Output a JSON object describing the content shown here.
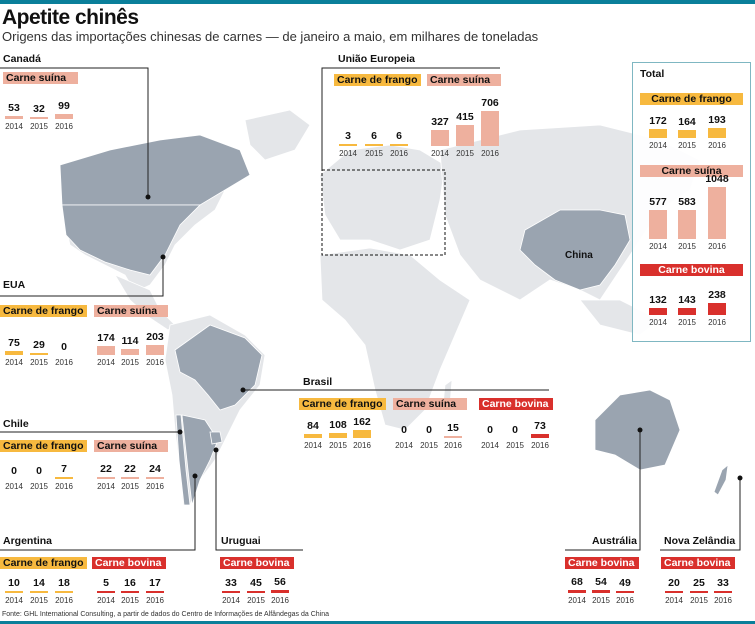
{
  "header": {
    "title": "Apetite chinês",
    "subtitle": "Origens das importações chinesas de carnes — de janeiro a maio, em milhares de toneladas"
  },
  "source": "Fonte: GHL International Consulting, a partir de dados do Centro de Informações de Alfândegas da China",
  "map_labels": {
    "china": "China"
  },
  "colors": {
    "frango": "#f7b93f",
    "suina": "#eeb09e",
    "bovina": "#d9302c",
    "accent": "#0a7f9a",
    "highlight_country": "#9aa4b0",
    "land": "#e4e6e9"
  },
  "regions": {
    "canada": "Canadá",
    "eua": "EUA",
    "ue": "União Europeia",
    "brasil": "Brasil",
    "chile": "Chile",
    "argentina": "Argentina",
    "uruguai": "Uruguai",
    "australia": "Austrália",
    "nz": "Nova Zelândia",
    "total": "Total"
  },
  "chart_data": {
    "type": "bar",
    "title": "Apetite chinês",
    "categories": [
      "2014",
      "2015",
      "2016"
    ],
    "groups": [
      {
        "region": "Canadá",
        "product": "Carne suína",
        "values": [
          53,
          32,
          99
        ]
      },
      {
        "region": "EUA",
        "product": "Carne de frango",
        "values": [
          75,
          29,
          0
        ]
      },
      {
        "region": "EUA",
        "product": "Carne suína",
        "values": [
          174,
          114,
          203
        ]
      },
      {
        "region": "Chile",
        "product": "Carne de frango",
        "values": [
          0,
          0,
          7
        ]
      },
      {
        "region": "Chile",
        "product": "Carne suína",
        "values": [
          22,
          22,
          24
        ]
      },
      {
        "region": "Argentina",
        "product": "Carne de frango",
        "values": [
          10,
          14,
          18
        ]
      },
      {
        "region": "Argentina",
        "product": "Carne bovina",
        "values": [
          5,
          16,
          17
        ]
      },
      {
        "region": "Uruguai",
        "product": "Carne bovina",
        "values": [
          33,
          45,
          56
        ]
      },
      {
        "region": "Austrália",
        "product": "Carne bovina",
        "values": [
          68,
          54,
          49
        ]
      },
      {
        "region": "Nova Zelândia",
        "product": "Carne bovina",
        "values": [
          20,
          25,
          33
        ]
      },
      {
        "region": "Brasil",
        "product": "Carne de frango",
        "values": [
          84,
          108,
          162
        ]
      },
      {
        "region": "Brasil",
        "product": "Carne suína",
        "values": [
          0,
          0,
          15
        ]
      },
      {
        "region": "Brasil",
        "product": "Carne bovina",
        "values": [
          0,
          0,
          73
        ]
      },
      {
        "region": "União Europeia",
        "product": "Carne de frango",
        "values": [
          3,
          6,
          6
        ]
      },
      {
        "region": "União Europeia",
        "product": "Carne suína",
        "values": [
          327,
          415,
          706
        ]
      },
      {
        "region": "Total",
        "product": "Carne de frango",
        "values": [
          172,
          164,
          193
        ]
      },
      {
        "region": "Total",
        "product": "Carne suína",
        "values": [
          577,
          583,
          1048
        ]
      },
      {
        "region": "Total",
        "product": "Carne bovina",
        "values": [
          132,
          143,
          238
        ]
      }
    ]
  }
}
